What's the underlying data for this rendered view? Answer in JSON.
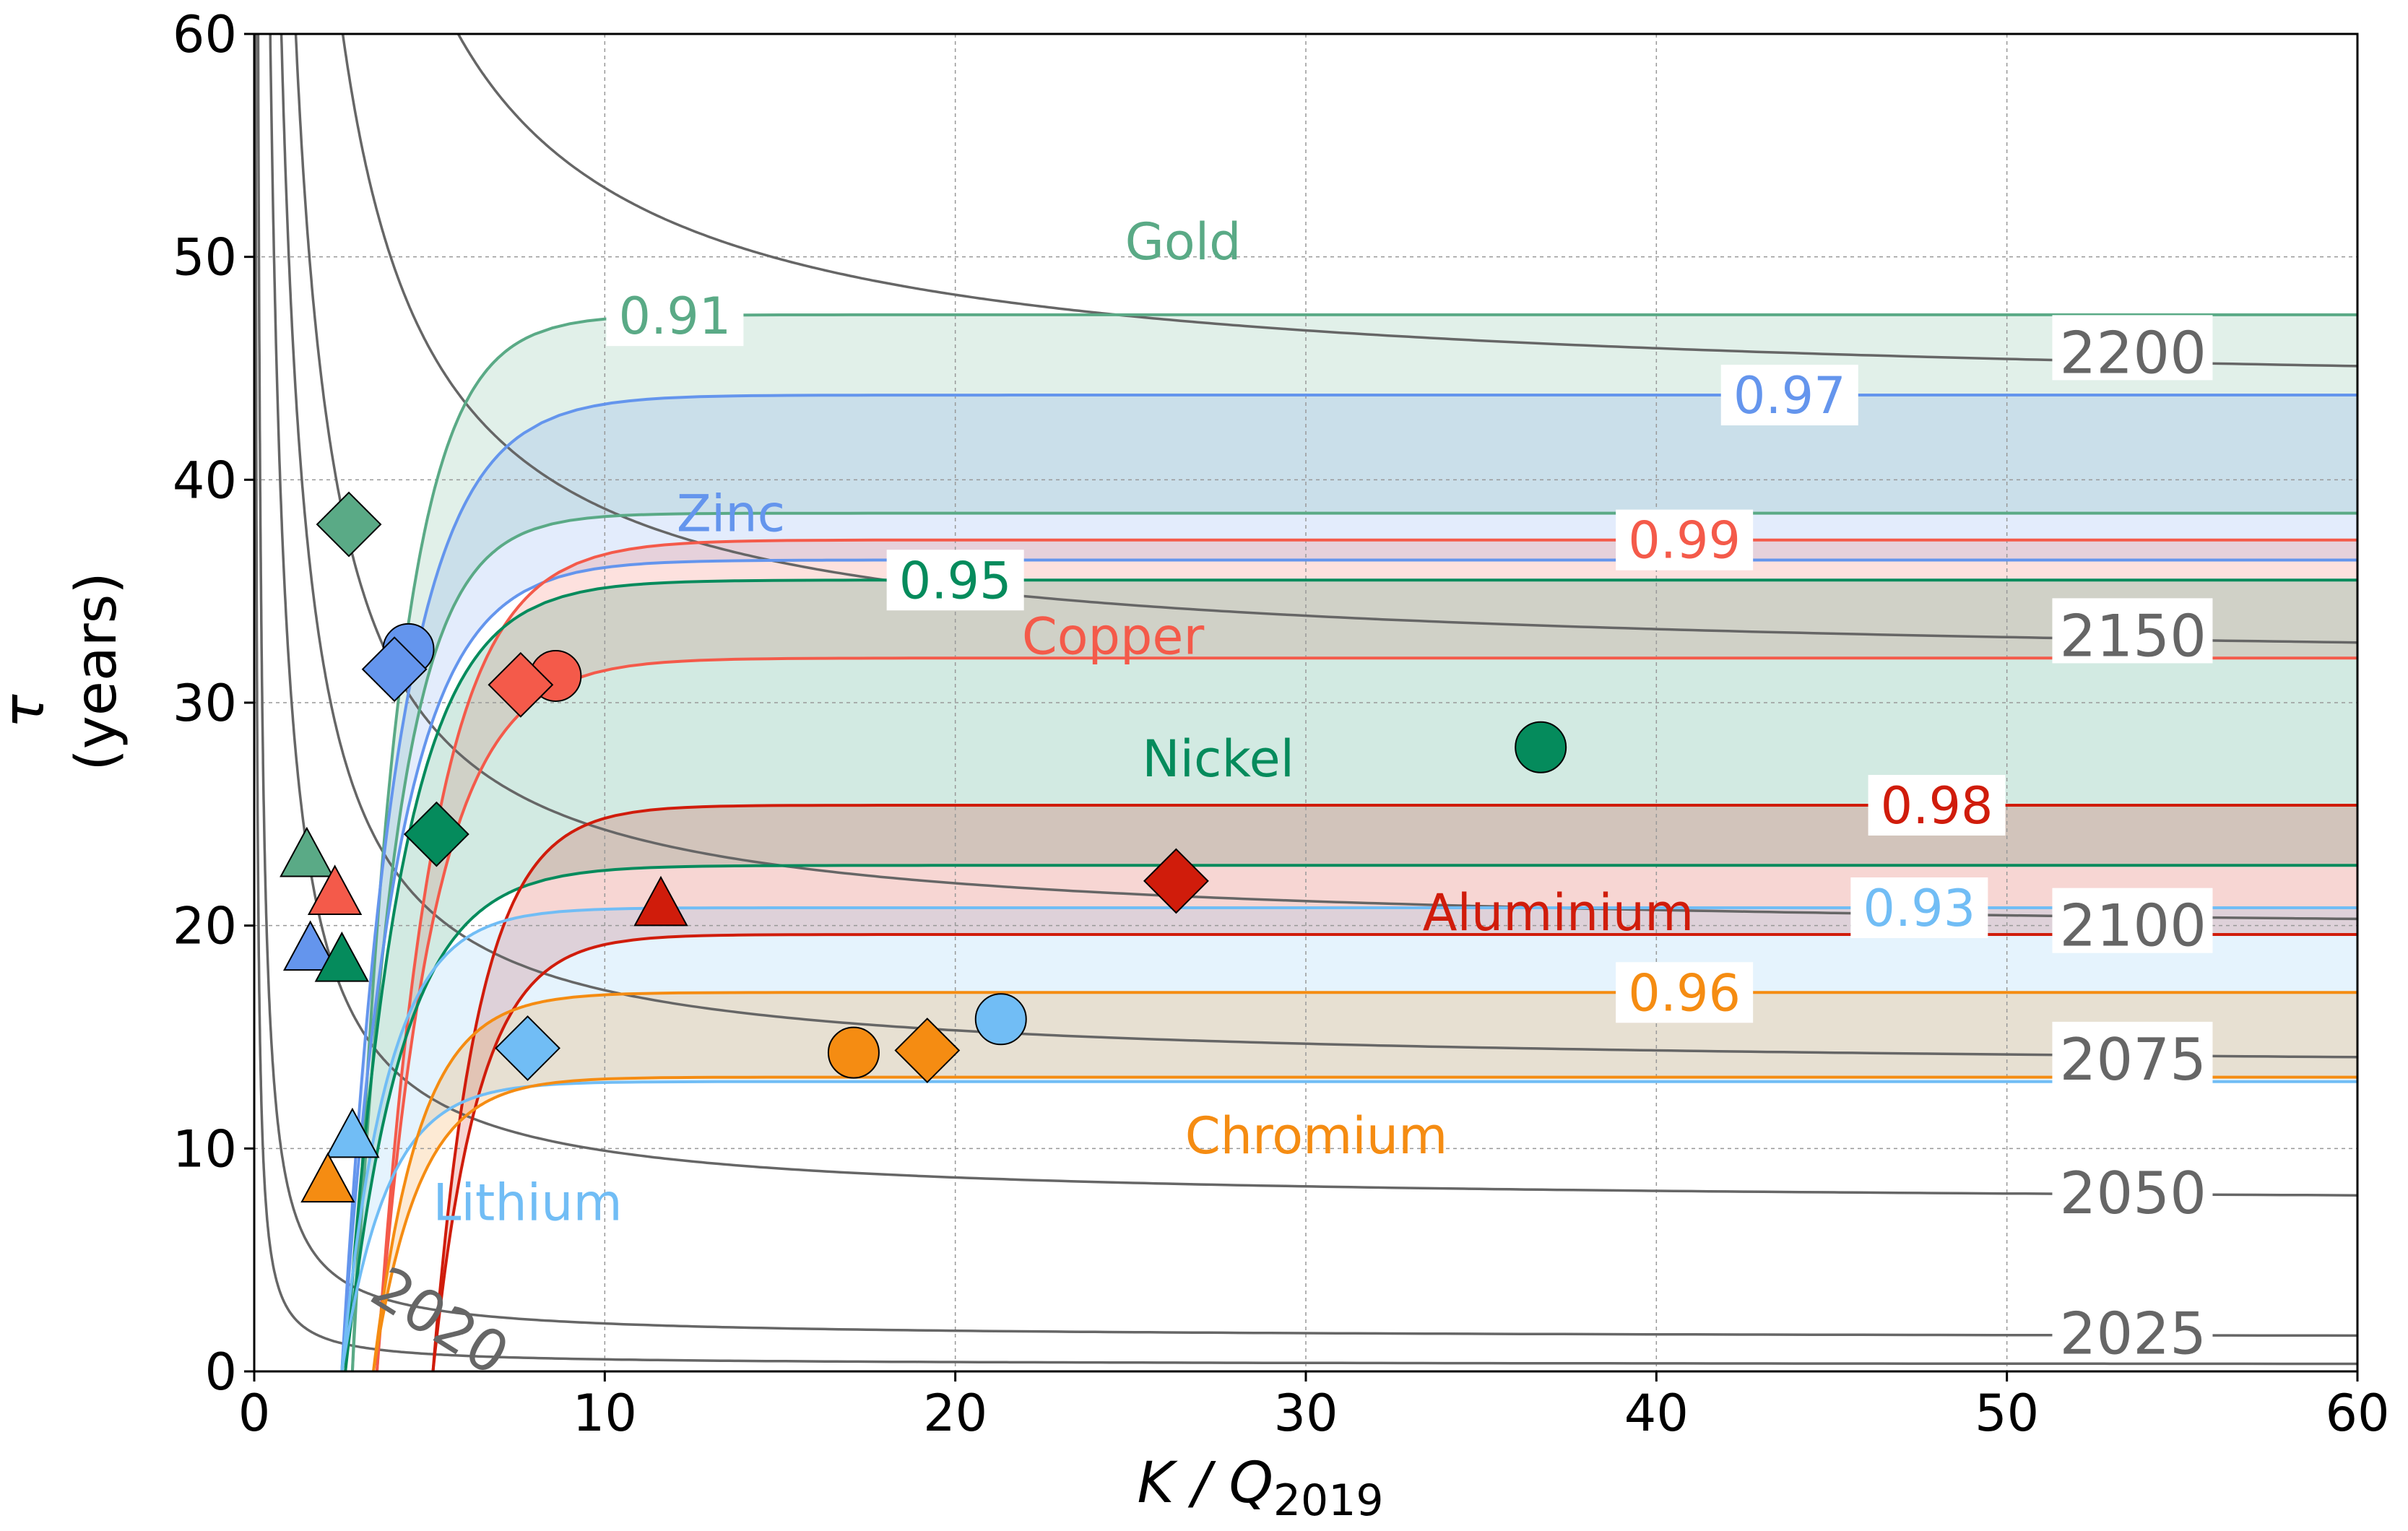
{
  "chart_data": {
    "type": "contour",
    "xlabel": "K / Q",
    "xlabel_sub": "2019",
    "ylabel_symbol": "τ",
    "ylabel_unit": "(years)",
    "xlim": [
      0,
      60
    ],
    "ylim": [
      0,
      60
    ],
    "xticks": [
      "0",
      "10",
      "20",
      "30",
      "40",
      "50",
      "60"
    ],
    "yticks": [
      "0",
      "10",
      "20",
      "30",
      "40",
      "50",
      "60"
    ],
    "grid": true,
    "colors": {
      "gold": "#5aaa86",
      "zinc": "#6495ed",
      "copper": "#f45a4a",
      "nickel": "#058b5c",
      "aluminium": "#d01c0b",
      "lithium": "#71bdf5",
      "chromium": "#f58c12",
      "year_line": "#666666"
    },
    "region_labels": [
      {
        "metal": "gold",
        "text": "Gold",
        "x": 26.5,
        "y": 50.7
      },
      {
        "metal": "zinc",
        "text": "Zinc",
        "x": 13.6,
        "y": 38.5
      },
      {
        "metal": "copper",
        "text": "Copper",
        "x": 24.5,
        "y": 33.0
      },
      {
        "metal": "nickel",
        "text": "Nickel",
        "x": 27.5,
        "y": 27.5
      },
      {
        "metal": "aluminium",
        "text": "Aluminium",
        "x": 37.2,
        "y": 20.6
      },
      {
        "metal": "chromium",
        "text": "Chromium",
        "x": 30.3,
        "y": 10.6
      },
      {
        "metal": "lithium",
        "text": "Lithium",
        "x": 7.8,
        "y": 7.6
      }
    ],
    "bands": [
      {
        "metal": "gold",
        "upper": 47.4,
        "lower": 38.5,
        "curve_k": 1.3,
        "x0": 2.8,
        "label": "0.91",
        "label_x": 12.0
      },
      {
        "metal": "zinc",
        "upper": 43.8,
        "lower": 36.4,
        "curve_k": 1.6,
        "x0": 2.5,
        "label": "0.97",
        "label_x": 43.8
      },
      {
        "metal": "copper",
        "upper": 37.3,
        "lower": 32.0,
        "curve_k": 1.6,
        "x0": 3.5,
        "label": "0.99",
        "label_x": 40.8
      },
      {
        "metal": "nickel",
        "upper": 35.5,
        "lower": 22.7,
        "curve_k": 1.6,
        "x0": 2.6,
        "label": "0.95",
        "label_x": 20.0
      },
      {
        "metal": "aluminium",
        "upper": 25.4,
        "lower": 19.6,
        "curve_k": 1.3,
        "x0": 5.1,
        "label": "0.98",
        "label_x": 48.0
      },
      {
        "metal": "lithium",
        "upper": 20.8,
        "lower": 13.0,
        "curve_k": 1.3,
        "x0": 2.5,
        "label": "0.93",
        "label_x": 47.5
      },
      {
        "metal": "chromium",
        "upper": 17.0,
        "lower": 13.2,
        "curve_k": 1.3,
        "x0": 3.4,
        "label": "0.96",
        "label_x": 40.8
      }
    ],
    "year_contours": [
      {
        "label": "2020",
        "asymptote": 0.3,
        "c": 2.4,
        "label_x": 5.0,
        "label_y": 1.5
      },
      {
        "label": "2025",
        "asymptote": 1.5,
        "c": 6.5,
        "label_x": 51.5,
        "label_y": 1.7
      },
      {
        "label": "2050",
        "asymptote": 7.5,
        "c": 24,
        "label_x": 51.5,
        "label_y": 8.0
      },
      {
        "label": "2075",
        "asymptote": 13.5,
        "c": 36,
        "label_x": 51.5,
        "label_y": 14.0
      },
      {
        "label": "2100",
        "asymptote": 19.5,
        "c": 48,
        "label_x": 51.5,
        "label_y": 20.0
      },
      {
        "label": "2150",
        "asymptote": 31.5,
        "c": 72,
        "label_x": 51.5,
        "label_y": 33.0
      },
      {
        "label": "2200",
        "asymptote": 43.5,
        "c": 96,
        "label_x": 51.5,
        "label_y": 45.7
      }
    ],
    "points": [
      {
        "metal": "gold",
        "shape": "diamond",
        "x": 2.7,
        "y": 38.0
      },
      {
        "metal": "gold",
        "shape": "triangle",
        "x": 1.5,
        "y": 23.2
      },
      {
        "metal": "zinc",
        "shape": "circle",
        "x": 4.4,
        "y": 32.4
      },
      {
        "metal": "zinc",
        "shape": "diamond",
        "x": 4.0,
        "y": 31.5
      },
      {
        "metal": "zinc",
        "shape": "triangle",
        "x": 1.6,
        "y": 19.0
      },
      {
        "metal": "copper",
        "shape": "circle",
        "x": 8.6,
        "y": 31.2
      },
      {
        "metal": "copper",
        "shape": "diamond",
        "x": 7.6,
        "y": 30.8
      },
      {
        "metal": "copper",
        "shape": "triangle",
        "x": 2.3,
        "y": 21.5
      },
      {
        "metal": "nickel",
        "shape": "circle",
        "x": 36.7,
        "y": 28.0
      },
      {
        "metal": "nickel",
        "shape": "diamond",
        "x": 5.2,
        "y": 24.1
      },
      {
        "metal": "nickel",
        "shape": "triangle",
        "x": 2.5,
        "y": 18.5
      },
      {
        "metal": "aluminium",
        "shape": "diamond",
        "x": 26.3,
        "y": 22.0
      },
      {
        "metal": "aluminium",
        "shape": "triangle",
        "x": 11.6,
        "y": 21.0
      },
      {
        "metal": "lithium",
        "shape": "circle",
        "x": 21.3,
        "y": 15.8
      },
      {
        "metal": "lithium",
        "shape": "diamond",
        "x": 7.8,
        "y": 14.5
      },
      {
        "metal": "lithium",
        "shape": "triangle",
        "x": 2.8,
        "y": 10.6
      },
      {
        "metal": "chromium",
        "shape": "circle",
        "x": 17.1,
        "y": 14.3
      },
      {
        "metal": "chromium",
        "shape": "diamond",
        "x": 19.2,
        "y": 14.4
      },
      {
        "metal": "chromium",
        "shape": "triangle",
        "x": 2.1,
        "y": 8.6
      }
    ]
  }
}
